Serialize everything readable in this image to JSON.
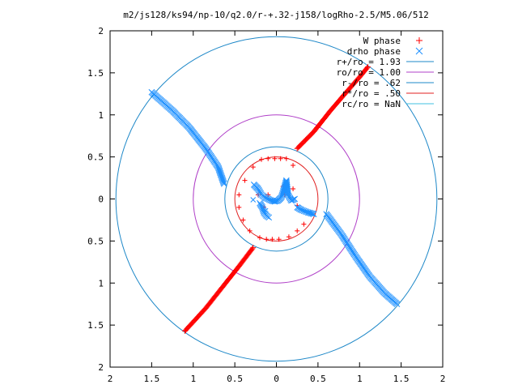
{
  "chart_data": {
    "type": "scatter",
    "title": "m2/js128/ks94/np-10/q2.0/r-+.32-j158/logRho-2.5/M5.06/512",
    "xlabel": "",
    "ylabel": "",
    "xlim": [
      -2,
      2
    ],
    "ylim": [
      -2,
      2
    ],
    "x_ticks": [
      {
        "value": -2,
        "label": "2"
      },
      {
        "value": -1.5,
        "label": "1.5"
      },
      {
        "value": -1,
        "label": "1"
      },
      {
        "value": -0.5,
        "label": "0.5"
      },
      {
        "value": 0,
        "label": "0"
      },
      {
        "value": 0.5,
        "label": "0.5"
      },
      {
        "value": 1,
        "label": "1"
      },
      {
        "value": 1.5,
        "label": "1.5"
      },
      {
        "value": 2,
        "label": "2"
      }
    ],
    "y_ticks": [
      {
        "value": 2,
        "label": "2"
      },
      {
        "value": 1.5,
        "label": "1.5"
      },
      {
        "value": 1,
        "label": "1"
      },
      {
        "value": 0.5,
        "label": "0.5"
      },
      {
        "value": 0,
        "label": "0"
      },
      {
        "value": -0.5,
        "label": "0.5"
      },
      {
        "value": -1,
        "label": "1"
      },
      {
        "value": -1.5,
        "label": "1.5"
      },
      {
        "value": -2,
        "label": "2"
      }
    ],
    "grid": false,
    "legend_position": "top-right",
    "series": [
      {
        "name": "W phase",
        "marker": "plus",
        "color": "#ff0000",
        "segments": [
          {
            "x": [
              0.25,
              0.45,
              0.65,
              0.85,
              1.0,
              1.1
            ],
            "y": [
              0.6,
              0.8,
              1.05,
              1.28,
              1.45,
              1.57
            ]
          },
          {
            "x": [
              -0.28,
              -0.45,
              -0.65,
              -0.85,
              -1.1
            ],
            "y": [
              -0.58,
              -0.8,
              -1.05,
              -1.3,
              -1.57
            ]
          }
        ],
        "points": [
          {
            "x": -0.18,
            "y": 0.47
          },
          {
            "x": -0.1,
            "y": 0.48
          },
          {
            "x": -0.02,
            "y": 0.48
          },
          {
            "x": 0.05,
            "y": 0.48
          },
          {
            "x": 0.12,
            "y": 0.48
          },
          {
            "x": -0.28,
            "y": 0.38
          },
          {
            "x": -0.38,
            "y": 0.22
          },
          {
            "x": -0.45,
            "y": 0.05
          },
          {
            "x": -0.45,
            "y": -0.1
          },
          {
            "x": -0.4,
            "y": -0.25
          },
          {
            "x": -0.32,
            "y": -0.38
          },
          {
            "x": -0.2,
            "y": -0.46
          },
          {
            "x": -0.12,
            "y": -0.48
          },
          {
            "x": -0.05,
            "y": -0.48
          },
          {
            "x": 0.03,
            "y": -0.48
          },
          {
            "x": 0.15,
            "y": -0.45
          },
          {
            "x": 0.25,
            "y": -0.38
          },
          {
            "x": 0.33,
            "y": -0.3
          },
          {
            "x": 0.2,
            "y": 0.4
          },
          {
            "x": -0.1,
            "y": 0.05
          },
          {
            "x": -0.05,
            "y": -0.02
          },
          {
            "x": 0.1,
            "y": 0.05
          },
          {
            "x": 0.08,
            "y": 0.15
          },
          {
            "x": -0.15,
            "y": -0.1
          },
          {
            "x": -0.22,
            "y": 0.05
          },
          {
            "x": 0.25,
            "y": -0.08
          },
          {
            "x": 0.2,
            "y": 0.12
          }
        ]
      },
      {
        "name": "drho phase",
        "marker": "cross",
        "color": "#1e90ff",
        "segments": [
          {
            "x": [
              -0.63,
              -0.7,
              -0.85,
              -1.05,
              -1.25,
              -1.5
            ],
            "y": [
              0.18,
              0.38,
              0.6,
              0.85,
              1.05,
              1.27
            ]
          },
          {
            "x": [
              0.6,
              0.78,
              0.95,
              1.12,
              1.3,
              1.45
            ],
            "y": [
              -0.18,
              -0.42,
              -0.68,
              -0.92,
              -1.12,
              -1.25
            ]
          },
          {
            "x": [
              -0.27,
              -0.22,
              -0.18,
              -0.14,
              -0.1,
              -0.06,
              -0.02,
              0.02,
              0.06,
              0.08,
              0.1,
              0.12,
              0.14,
              0.18,
              0.22
            ],
            "y": [
              0.17,
              0.12,
              0.05,
              0.02,
              0.0,
              -0.02,
              -0.03,
              -0.02,
              0.02,
              0.08,
              0.15,
              0.22,
              0.05,
              -0.02,
              0.0
            ]
          },
          {
            "x": [
              -0.2,
              -0.17,
              -0.15,
              -0.12,
              -0.09
            ],
            "y": [
              -0.05,
              -0.1,
              -0.16,
              -0.2,
              -0.22
            ]
          },
          {
            "x": [
              0.25,
              0.3,
              0.38,
              0.45
            ],
            "y": [
              -0.1,
              -0.13,
              -0.16,
              -0.18
            ]
          }
        ],
        "points": [
          {
            "x": -0.28,
            "y": -0.01
          },
          {
            "x": -0.13,
            "y": -0.14
          },
          {
            "x": 0.22,
            "y": 0.0
          }
        ]
      }
    ],
    "circles": [
      {
        "name": "r+/ro = 1.93",
        "radius": 1.93,
        "color": "#1e88c8"
      },
      {
        "name": "ro/ro = 1.00",
        "radius": 1.0,
        "color": "#b040c8"
      },
      {
        "name": "r-/ro = .62",
        "radius": 0.62,
        "color": "#1e88c8"
      },
      {
        "name": "r*/ro = .50",
        "radius": 0.5,
        "color": "#e02020"
      },
      {
        "name": "rc/ro = NaN",
        "radius": null,
        "color": "#40c0e0"
      }
    ]
  }
}
